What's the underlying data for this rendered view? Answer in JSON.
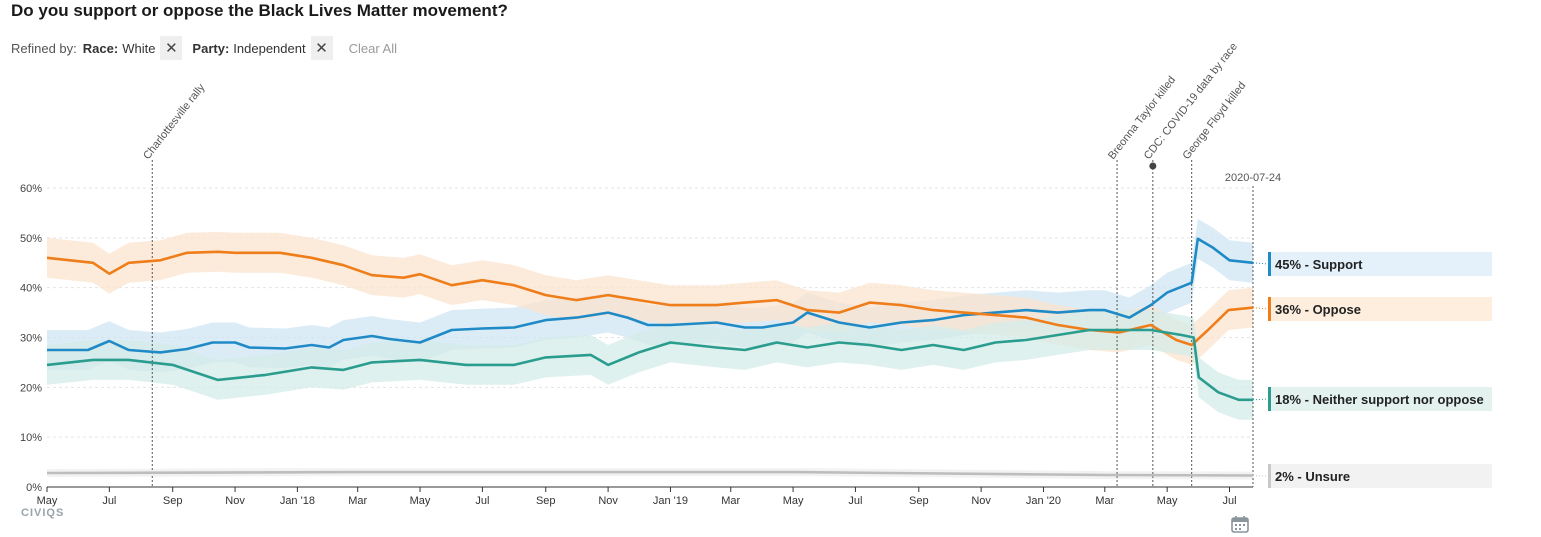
{
  "title": "Do you support or oppose the Black Lives Matter movement?",
  "filters": {
    "refined_label": "Refined by:",
    "items": [
      {
        "key": "Race:",
        "value": "White"
      },
      {
        "key": "Party:",
        "value": "Independent"
      }
    ],
    "clear_label": "Clear All"
  },
  "brand": "CIVIQS",
  "date_label": "2020-07-24",
  "chart_data": {
    "type": "line",
    "ylim": [
      0,
      60
    ],
    "yticks": [
      "0%",
      "10%",
      "20%",
      "30%",
      "40%",
      "50%",
      "60%"
    ],
    "xlim": [
      "2017-05-01",
      "2020-07-24"
    ],
    "xticks": [
      {
        "date": "2017-05-01",
        "label": "May"
      },
      {
        "date": "2017-07-01",
        "label": "Jul"
      },
      {
        "date": "2017-09-01",
        "label": "Sep"
      },
      {
        "date": "2017-11-01",
        "label": "Nov"
      },
      {
        "date": "2018-01-01",
        "label": "Jan '18"
      },
      {
        "date": "2018-03-01",
        "label": "Mar"
      },
      {
        "date": "2018-05-01",
        "label": "May"
      },
      {
        "date": "2018-07-01",
        "label": "Jul"
      },
      {
        "date": "2018-09-01",
        "label": "Sep"
      },
      {
        "date": "2018-11-01",
        "label": "Nov"
      },
      {
        "date": "2019-01-01",
        "label": "Jan '19"
      },
      {
        "date": "2019-03-01",
        "label": "Mar"
      },
      {
        "date": "2019-05-01",
        "label": "May"
      },
      {
        "date": "2019-07-01",
        "label": "Jul"
      },
      {
        "date": "2019-09-01",
        "label": "Sep"
      },
      {
        "date": "2019-11-01",
        "label": "Nov"
      },
      {
        "date": "2020-01-01",
        "label": "Jan '20"
      },
      {
        "date": "2020-03-01",
        "label": "Mar"
      },
      {
        "date": "2020-05-01",
        "label": "May"
      },
      {
        "date": "2020-07-01",
        "label": "Jul"
      }
    ],
    "events": [
      {
        "date": "2017-08-12",
        "label": "Charlottesville rally"
      },
      {
        "date": "2020-03-13",
        "label": "Breonna Taylor killed"
      },
      {
        "date": "2020-04-17",
        "label": "CDC: COVID-19 data by race"
      },
      {
        "date": "2020-05-25",
        "label": "George Floyd killed"
      }
    ],
    "series": [
      {
        "name": "Support",
        "end_label": "45% - Support",
        "color": "#1f8ac6",
        "band": "#cfe6f4",
        "band_width": 4,
        "points": [
          [
            "2017-05-01",
            27.5
          ],
          [
            "2017-06-10",
            27.5
          ],
          [
            "2017-07-01",
            29.3
          ],
          [
            "2017-07-20",
            27.5
          ],
          [
            "2017-08-20",
            27.0
          ],
          [
            "2017-09-15",
            27.7
          ],
          [
            "2017-10-10",
            29.0
          ],
          [
            "2017-11-01",
            29.0
          ],
          [
            "2017-11-15",
            28.0
          ],
          [
            "2017-12-20",
            27.8
          ],
          [
            "2018-01-15",
            28.5
          ],
          [
            "2018-02-01",
            28.0
          ],
          [
            "2018-02-15",
            29.5
          ],
          [
            "2018-03-15",
            30.3
          ],
          [
            "2018-04-01",
            29.7
          ],
          [
            "2018-05-01",
            29.0
          ],
          [
            "2018-06-01",
            31.5
          ],
          [
            "2018-07-01",
            31.8
          ],
          [
            "2018-08-01",
            32.0
          ],
          [
            "2018-09-01",
            33.5
          ],
          [
            "2018-10-01",
            34.0
          ],
          [
            "2018-11-01",
            35.0
          ],
          [
            "2018-11-20",
            34.0
          ],
          [
            "2018-12-10",
            32.5
          ],
          [
            "2019-01-01",
            32.5
          ],
          [
            "2019-02-15",
            33.0
          ],
          [
            "2019-03-15",
            32.0
          ],
          [
            "2019-04-01",
            32.0
          ],
          [
            "2019-05-01",
            33.0
          ],
          [
            "2019-05-15",
            35.0
          ],
          [
            "2019-06-15",
            33.0
          ],
          [
            "2019-07-15",
            32.0
          ],
          [
            "2019-08-15",
            33.0
          ],
          [
            "2019-09-15",
            33.5
          ],
          [
            "2019-10-15",
            34.5
          ],
          [
            "2019-11-15",
            35.0
          ],
          [
            "2019-12-15",
            35.5
          ],
          [
            "2020-01-15",
            35.0
          ],
          [
            "2020-02-15",
            35.5
          ],
          [
            "2020-03-01",
            35.5
          ],
          [
            "2020-03-25",
            34.0
          ],
          [
            "2020-04-15",
            36.5
          ],
          [
            "2020-05-01",
            39.0
          ],
          [
            "2020-05-25",
            41.0
          ],
          [
            "2020-05-31",
            49.8
          ],
          [
            "2020-06-15",
            48.0
          ],
          [
            "2020-07-01",
            45.5
          ],
          [
            "2020-07-24",
            45.0
          ]
        ]
      },
      {
        "name": "Oppose",
        "end_label": "36% - Oppose",
        "color": "#ee7d1a",
        "band": "#fbe4cf",
        "band_width": 4,
        "points": [
          [
            "2017-05-01",
            46.0
          ],
          [
            "2017-06-15",
            45.0
          ],
          [
            "2017-07-01",
            42.8
          ],
          [
            "2017-07-20",
            45.0
          ],
          [
            "2017-08-20",
            45.5
          ],
          [
            "2017-09-15",
            47.0
          ],
          [
            "2017-10-15",
            47.2
          ],
          [
            "2017-11-01",
            47.0
          ],
          [
            "2017-12-15",
            47.0
          ],
          [
            "2018-01-15",
            46.0
          ],
          [
            "2018-02-15",
            44.5
          ],
          [
            "2018-03-15",
            42.5
          ],
          [
            "2018-04-15",
            42.0
          ],
          [
            "2018-05-01",
            42.7
          ],
          [
            "2018-06-01",
            40.5
          ],
          [
            "2018-07-01",
            41.5
          ],
          [
            "2018-08-01",
            40.5
          ],
          [
            "2018-09-01",
            38.5
          ],
          [
            "2018-10-01",
            37.5
          ],
          [
            "2018-11-01",
            38.5
          ],
          [
            "2018-12-01",
            37.5
          ],
          [
            "2019-01-01",
            36.5
          ],
          [
            "2019-02-15",
            36.5
          ],
          [
            "2019-03-15",
            37.0
          ],
          [
            "2019-04-15",
            37.5
          ],
          [
            "2019-05-15",
            35.5
          ],
          [
            "2019-06-15",
            35.0
          ],
          [
            "2019-07-15",
            37.0
          ],
          [
            "2019-08-15",
            36.5
          ],
          [
            "2019-09-15",
            35.5
          ],
          [
            "2019-10-15",
            35.0
          ],
          [
            "2019-11-15",
            34.5
          ],
          [
            "2019-12-15",
            34.0
          ],
          [
            "2020-01-15",
            32.5
          ],
          [
            "2020-02-15",
            31.5
          ],
          [
            "2020-03-15",
            31.0
          ],
          [
            "2020-04-15",
            32.5
          ],
          [
            "2020-05-10",
            29.5
          ],
          [
            "2020-05-25",
            28.5
          ],
          [
            "2020-06-10",
            31.5
          ],
          [
            "2020-06-30",
            35.5
          ],
          [
            "2020-07-24",
            36.0
          ]
        ]
      },
      {
        "name": "Neither support nor oppose",
        "end_label": "18% - Neither support nor oppose",
        "color": "#2a9d8f",
        "band": "#d4ece8",
        "band_width": 4,
        "points": [
          [
            "2017-05-01",
            24.5
          ],
          [
            "2017-06-15",
            25.5
          ],
          [
            "2017-07-20",
            25.5
          ],
          [
            "2017-09-01",
            24.5
          ],
          [
            "2017-10-15",
            21.5
          ],
          [
            "2017-12-01",
            22.5
          ],
          [
            "2018-01-15",
            24.0
          ],
          [
            "2018-02-15",
            23.5
          ],
          [
            "2018-03-15",
            25.0
          ],
          [
            "2018-05-01",
            25.5
          ],
          [
            "2018-06-15",
            24.5
          ],
          [
            "2018-08-01",
            24.5
          ],
          [
            "2018-09-01",
            26.0
          ],
          [
            "2018-10-15",
            26.5
          ],
          [
            "2018-11-01",
            24.5
          ],
          [
            "2018-12-01",
            27.0
          ],
          [
            "2019-01-01",
            29.0
          ],
          [
            "2019-02-15",
            28.0
          ],
          [
            "2019-03-15",
            27.5
          ],
          [
            "2019-04-15",
            29.0
          ],
          [
            "2019-05-15",
            28.0
          ],
          [
            "2019-06-15",
            29.0
          ],
          [
            "2019-07-15",
            28.5
          ],
          [
            "2019-08-15",
            27.5
          ],
          [
            "2019-09-15",
            28.5
          ],
          [
            "2019-10-15",
            27.5
          ],
          [
            "2019-11-15",
            29.0
          ],
          [
            "2019-12-15",
            29.5
          ],
          [
            "2020-01-15",
            30.5
          ],
          [
            "2020-02-15",
            31.5
          ],
          [
            "2020-03-15",
            31.5
          ],
          [
            "2020-04-15",
            31.5
          ],
          [
            "2020-05-15",
            30.5
          ],
          [
            "2020-05-27",
            30.0
          ],
          [
            "2020-06-01",
            22.0
          ],
          [
            "2020-06-20",
            19.0
          ],
          [
            "2020-07-10",
            17.5
          ],
          [
            "2020-07-24",
            17.5
          ]
        ]
      },
      {
        "name": "Unsure",
        "end_label": "2% - Unsure",
        "color": "#bdbdbd",
        "band": "#eeeeee",
        "band_width": 0.8,
        "points": [
          [
            "2017-05-01",
            2.8
          ],
          [
            "2018-03-01",
            3.0
          ],
          [
            "2019-05-01",
            3.0
          ],
          [
            "2020-03-01",
            2.4
          ],
          [
            "2020-07-24",
            2.3
          ]
        ]
      }
    ],
    "labels": [
      {
        "text": "45% - Support",
        "color": "#1f8ac6",
        "bg": "#e5f1fa"
      },
      {
        "text": "36% - Oppose",
        "color": "#ee7d1a",
        "bg": "#fdeede"
      },
      {
        "text": "18% - Neither support nor oppose",
        "color": "#2a9d8f",
        "bg": "#e3f2ef"
      },
      {
        "text": "2% - Unsure",
        "color": "#c8c8c8",
        "bg": "#f2f2f2"
      }
    ]
  }
}
